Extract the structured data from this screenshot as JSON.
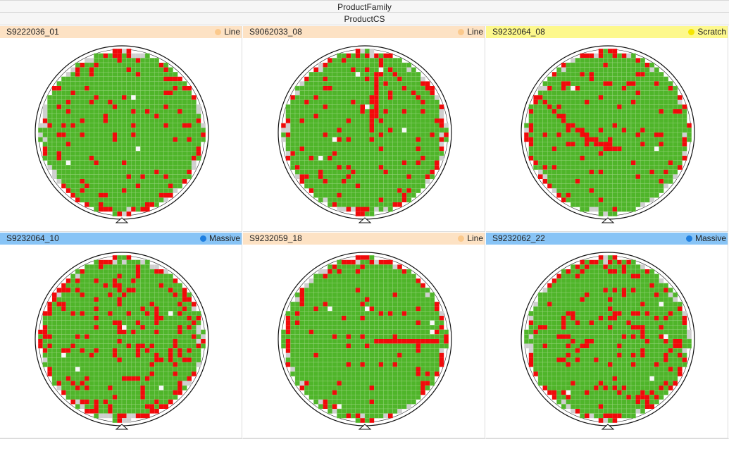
{
  "header": {
    "product_family": "ProductFamily",
    "product_cs": "ProductCS"
  },
  "colors": {
    "pass": "#4fb52a",
    "fail": "#f00a0a",
    "grid": "#9ad47f",
    "edge": "#cfcfcf",
    "ink": "#f7f7f7",
    "line_tag": "#fde2c4",
    "line_dot": "#fbc98c",
    "scratch_tag": "#fdf88c",
    "scratch_dot": "#f5e600",
    "massive_tag": "#88c4f6",
    "massive_dot": "#1f7fe0"
  },
  "wafers": [
    {
      "id": "S9222036_01",
      "pattern": "Line",
      "fail_density": 0.09,
      "seed": 11
    },
    {
      "id": "S9062033_08",
      "pattern": "Line",
      "fail_density": 0.06,
      "seed": 23
    },
    {
      "id": "S9232064_08",
      "pattern": "Scratch",
      "fail_density": 0.08,
      "seed": 37
    },
    {
      "id": "S9232064_10",
      "pattern": "Massive",
      "fail_density": 0.17,
      "seed": 41
    },
    {
      "id": "S9232059_18",
      "pattern": "Line",
      "fail_density": 0.07,
      "seed": 53
    },
    {
      "id": "S9232062_22",
      "pattern": "Massive",
      "fail_density": 0.11,
      "seed": 67
    }
  ]
}
